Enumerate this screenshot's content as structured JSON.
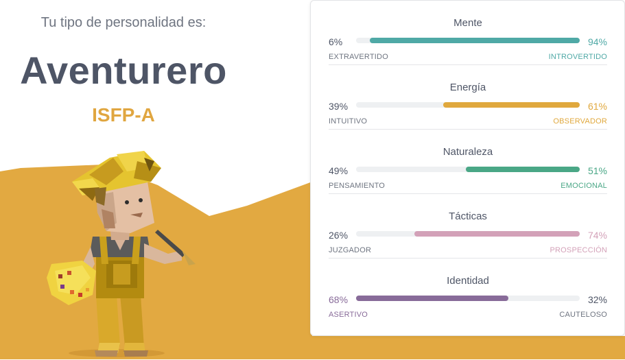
{
  "intro": "Tu tipo de personalidad es:",
  "type_name": "Aventurero",
  "type_code": "ISFP-A",
  "colors": {
    "background_shape": "#e2a941",
    "mente": "#4fa9a6",
    "energia": "#e0a83d",
    "naturaleza": "#4aa786",
    "tacticas": "#d3a1b8",
    "identidad": "#886b99"
  },
  "traits": [
    {
      "title": "Mente",
      "left_pct": "6%",
      "right_pct": "94%",
      "left_label": "EXTRAVERTIDO",
      "right_label": "INTROVERTIDO",
      "dominant": "right",
      "value": 94
    },
    {
      "title": "Energía",
      "left_pct": "39%",
      "right_pct": "61%",
      "left_label": "INTUITIVO",
      "right_label": "OBSERVADOR",
      "dominant": "right",
      "value": 61
    },
    {
      "title": "Naturaleza",
      "left_pct": "49%",
      "right_pct": "51%",
      "left_label": "PENSAMIENTO",
      "right_label": "EMOCIONAL",
      "dominant": "right",
      "value": 51
    },
    {
      "title": "Tácticas",
      "left_pct": "26%",
      "right_pct": "74%",
      "left_label": "JUZGADOR",
      "right_label": "PROSPECCIÓN",
      "dominant": "right",
      "value": 74
    },
    {
      "title": "Identidad",
      "left_pct": "68%",
      "right_pct": "32%",
      "left_label": "ASERTIVO",
      "right_label": "CAUTELOSO",
      "dominant": "left",
      "value": 68
    }
  ]
}
